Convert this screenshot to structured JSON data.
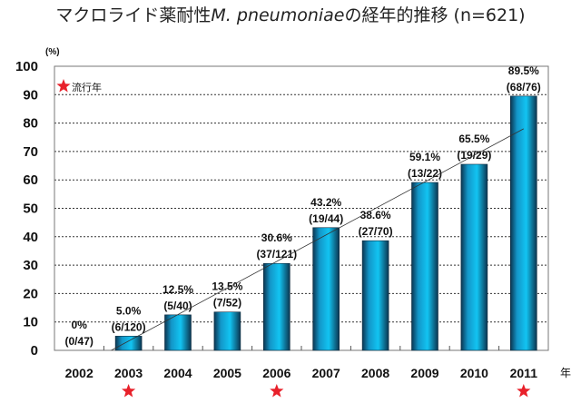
{
  "chart_data": {
    "type": "bar",
    "title": {
      "prefix": "マクロライド薬耐性",
      "italic": "M. pneumoniae",
      "suffix": "の経年的推移 (n=621)"
    },
    "ylabel": "(%)",
    "xlabel": "年",
    "ylim": [
      0,
      100
    ],
    "yticks": [
      0,
      10,
      20,
      30,
      40,
      50,
      60,
      70,
      80,
      90,
      100
    ],
    "grid": "dotted horizontal",
    "categories": [
      "2002",
      "2003",
      "2004",
      "2005",
      "2006",
      "2007",
      "2008",
      "2009",
      "2010",
      "2011"
    ],
    "values": [
      0,
      5.0,
      12.5,
      13.5,
      30.6,
      43.2,
      38.6,
      59.1,
      65.5,
      89.5
    ],
    "pct_labels": [
      "0%",
      "5.0%",
      "12.5%",
      "13.5%",
      "30.6%",
      "43.2%",
      "38.6%",
      "59.1%",
      "65.5%",
      "89.5%"
    ],
    "count_labels": [
      "(0/47)",
      "(6/120)",
      "(5/40)",
      "(7/52)",
      "(37/121)",
      "(19/44)",
      "(27/70)",
      "(13/22)",
      "(19/29)",
      "(68/76)"
    ],
    "epidemic_years": [
      "2003",
      "2006",
      "2011"
    ],
    "legend": {
      "label": "流行年",
      "placement": "top-left"
    },
    "trendline": {
      "from": {
        "x_index": 0.65,
        "y": 0
      },
      "to": {
        "x_index": 9,
        "y": 78
      }
    },
    "colors": {
      "bar": "#13a6d6",
      "bar_dark": "#0b3550",
      "star": "#e8202a",
      "grid": "#333333"
    }
  }
}
